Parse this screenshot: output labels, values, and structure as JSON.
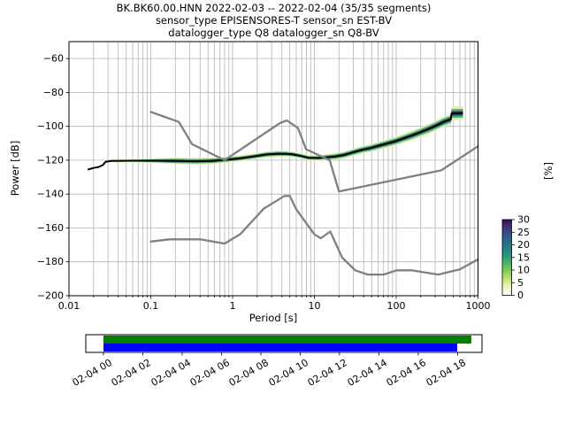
{
  "header": {
    "title_line1": "BK.BK60.00.HNN   2022-02-03 -- 2022-02-04  (35/35 segments)",
    "title_line2": "sensor_type EPISENSORES-T sensor_sn EST-BV",
    "title_line3": "datalogger_type Q8 datalogger_sn Q8-BV"
  },
  "chart_data": {
    "type": "line",
    "subtype": "ppsd-probabilistic-power-spectral-density",
    "title": "BK.BK60.00.HNN   2022-02-03 -- 2022-02-04  (35/35 segments)",
    "xlabel": "Period [s]",
    "ylabel": "Power [dB]",
    "xscale": "log",
    "xlim": [
      0.01,
      1000
    ],
    "ylim": [
      -200,
      -50
    ],
    "grid": true,
    "xticks": {
      "values": [
        0.01,
        0.1,
        1,
        10,
        100,
        1000
      ],
      "labels": [
        "0.01",
        "0.1",
        "1",
        "10",
        "100",
        "1000"
      ]
    },
    "yticks": {
      "values": [
        -60,
        -80,
        -100,
        -120,
        -140,
        -160,
        -180,
        -200
      ],
      "labels": [
        "−60",
        "−80",
        "−100",
        "−120",
        "−140",
        "−160",
        "−180",
        "−200"
      ]
    },
    "colorbar": {
      "label": "[%]",
      "tick_values": [
        0,
        5,
        10,
        15,
        20,
        25,
        30
      ],
      "tick_labels": [
        "0",
        "5",
        "10",
        "15",
        "20",
        "25",
        "30"
      ],
      "gradient_bottom_to_top": [
        "#ffffff",
        "#f4f8c8",
        "#dfee9e",
        "#b8e069",
        "#8ad153",
        "#5cc15e",
        "#3bab6f",
        "#27947e",
        "#218587",
        "#26708e",
        "#2e5d8c",
        "#374783",
        "#3d2f74",
        "#440154"
      ]
    },
    "series": [
      {
        "name": "NHNM Peterson high noise model",
        "color": "#808080",
        "width": 2.3,
        "points": [
          [
            0.1,
            -91.5
          ],
          [
            0.22,
            -97.4
          ],
          [
            0.32,
            -110.5
          ],
          [
            0.8,
            -120.0
          ],
          [
            3.8,
            -98.1
          ],
          [
            4.6,
            -96.5
          ],
          [
            6.3,
            -101.0
          ],
          [
            7.9,
            -113.5
          ],
          [
            15.4,
            -120.0
          ],
          [
            20,
            -138.5
          ],
          [
            354.8,
            -126.0
          ],
          [
            1000,
            -111.8
          ]
        ]
      },
      {
        "name": "NLNM Peterson low noise model",
        "color": "#808080",
        "width": 2.3,
        "points": [
          [
            0.1,
            -168.0
          ],
          [
            0.17,
            -166.7
          ],
          [
            0.4,
            -166.7
          ],
          [
            0.8,
            -169.2
          ],
          [
            1.24,
            -163.7
          ],
          [
            2.4,
            -148.6
          ],
          [
            4.3,
            -141.1
          ],
          [
            5,
            -141.1
          ],
          [
            6,
            -149.0
          ],
          [
            10,
            -163.8
          ],
          [
            12,
            -166.1
          ],
          [
            15.6,
            -162.1
          ],
          [
            21.9,
            -177.5
          ],
          [
            31.6,
            -185.0
          ],
          [
            45,
            -187.5
          ],
          [
            70,
            -187.5
          ],
          [
            101,
            -185.0
          ],
          [
            154,
            -185.0
          ],
          [
            328,
            -187.5
          ],
          [
            600,
            -184.4
          ],
          [
            1000,
            -178.5
          ]
        ]
      },
      {
        "name": "PPSD mode with percentage histogram band (T, dB, half-width dB)",
        "color": "#000000",
        "width": 2,
        "points": [
          [
            0.017,
            -125.5,
            0.5
          ],
          [
            0.02,
            -124.6,
            0.5
          ],
          [
            0.023,
            -124.0,
            0.5
          ],
          [
            0.026,
            -122.8,
            0.5
          ],
          [
            0.028,
            -120.9,
            0.6
          ],
          [
            0.033,
            -120.4,
            0.7
          ],
          [
            0.06,
            -120.3,
            0.9
          ],
          [
            0.12,
            -120.3,
            1.4
          ],
          [
            0.2,
            -120.4,
            1.9
          ],
          [
            0.35,
            -120.6,
            2.0
          ],
          [
            0.55,
            -120.4,
            1.9
          ],
          [
            0.8,
            -119.8,
            1.8
          ],
          [
            1.2,
            -119.0,
            1.7
          ],
          [
            1.8,
            -117.8,
            1.7
          ],
          [
            2.6,
            -116.6,
            1.8
          ],
          [
            3.5,
            -116.2,
            1.8
          ],
          [
            4.5,
            -116.2,
            1.7
          ],
          [
            5.5,
            -116.6,
            1.6
          ],
          [
            7,
            -117.6,
            1.5
          ],
          [
            8.5,
            -118.6,
            1.5
          ],
          [
            11,
            -118.7,
            1.6
          ],
          [
            14,
            -118.3,
            1.8
          ],
          [
            18,
            -117.8,
            2.0
          ],
          [
            23,
            -116.9,
            2.1
          ],
          [
            30,
            -115.3,
            2.1
          ],
          [
            38,
            -113.9,
            2.2
          ],
          [
            48,
            -112.9,
            2.3
          ],
          [
            62,
            -111.4,
            2.4
          ],
          [
            78,
            -110.1,
            2.5
          ],
          [
            98,
            -108.8,
            2.6
          ],
          [
            125,
            -107.0,
            2.7
          ],
          [
            160,
            -105.2,
            2.8
          ],
          [
            200,
            -103.4,
            2.9
          ],
          [
            250,
            -101.5,
            3.0
          ],
          [
            310,
            -99.5,
            3.0
          ],
          [
            380,
            -97.4,
            3.1
          ],
          [
            440,
            -96.2,
            3.1
          ],
          [
            465,
            -96.0,
            3.2
          ],
          [
            475,
            -92.4,
            4.0
          ],
          [
            655,
            -92.3,
            4.0
          ]
        ],
        "bands": [
          {
            "mult": 1.0,
            "color": "#dcedb8"
          },
          {
            "mult": 0.65,
            "color": "#59b25f"
          },
          {
            "mult": 0.4,
            "color": "#2a7d8e"
          },
          {
            "mult": 0.22,
            "color": "#381a56"
          }
        ]
      }
    ],
    "timeline": {
      "tick_labels": [
        "02-04 00",
        "02-04 02",
        "02-04 04",
        "02-04 06",
        "02-04 08",
        "02-04 10",
        "02-04 12",
        "02-04 14",
        "02-04 16",
        "02-04 18"
      ],
      "first_tick_frac": 0.0446,
      "tick_spacing_frac": 0.0993,
      "bars": [
        {
          "name": "coverage-bar-green",
          "color": "#008000",
          "start_frac": 0.0446,
          "end_frac": 0.973,
          "position": "top"
        },
        {
          "name": "coverage-bar-blue",
          "color": "#0000ff",
          "start_frac": 0.0446,
          "end_frac": 0.9375,
          "position": "bottom"
        }
      ]
    }
  }
}
